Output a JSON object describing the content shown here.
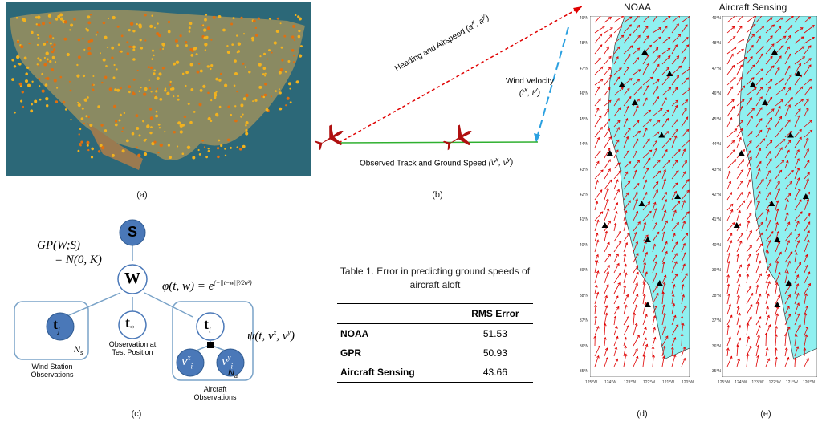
{
  "captions": {
    "a": "(a)",
    "b": "(b)",
    "c": "(c)",
    "d": "(d)",
    "e": "(e)"
  },
  "panel_b": {
    "heading": "Heading and Airspeed",
    "heading_sym": "(a",
    "wind": "Wind Velocity",
    "wind_sym": "(t",
    "track": "Observed Track and Ground Speed",
    "track_sym": "(v"
  },
  "panel_c": {
    "gp": "GP(W;S)",
    "gp2": "= N(0, K)",
    "node_s": "S",
    "node_w": "W",
    "node_tj": "t",
    "node_tstar": "t",
    "node_ti": "t",
    "node_vx": "v",
    "node_vy": "v",
    "phi": "φ(t, w) = e",
    "psi": "ψ(t, v",
    "ns": "N",
    "na": "N",
    "wind_obs": "Wind Station Observations",
    "test_obs": "Observation at Test Position",
    "aircraft_obs": "Aircraft Observations"
  },
  "table": {
    "title": "Table 1. Error in predicting ground speeds of aircraft aloft",
    "col": "RMS Error",
    "rows": [
      {
        "name": "NOAA",
        "value": "51.53"
      },
      {
        "name": "GPR",
        "value": "50.93"
      },
      {
        "name": "Aircraft Sensing",
        "value": "43.66"
      }
    ]
  },
  "maps": {
    "d_title": "NOAA",
    "e_title": "Aircraft Sensing",
    "lat_ticks": [
      "49°N",
      "48°N",
      "47°N",
      "46°N",
      "45°N",
      "44°N",
      "43°N",
      "42°N",
      "41°N",
      "40°N",
      "39°N",
      "38°N",
      "37°N",
      "36°N",
      "35°N"
    ],
    "lon_ticks": [
      "125°W",
      "124°W",
      "123°W",
      "122°W",
      "121°W",
      "120°W"
    ],
    "ocean_color": "#ffffff",
    "land_color": "#8ff0f0",
    "arrow_color": "#e00000"
  }
}
